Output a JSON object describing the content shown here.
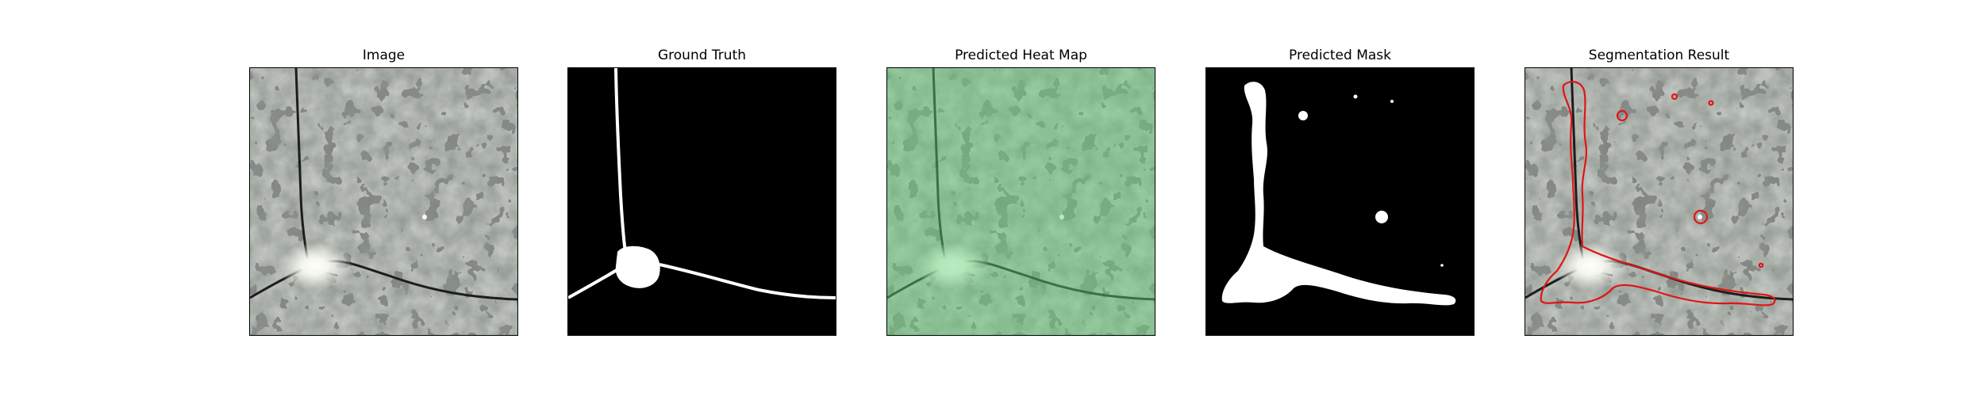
{
  "panels": [
    {
      "id": "image",
      "title": "Image"
    },
    {
      "id": "ground-truth",
      "title": "Ground Truth"
    },
    {
      "id": "heatmap",
      "title": "Predicted Heat Map"
    },
    {
      "id": "mask",
      "title": "Predicted Mask"
    },
    {
      "id": "segmentation",
      "title": "Segmentation Result"
    }
  ],
  "colors": {
    "texture_base": "#9aa09a",
    "texture_dark": "#3b3f3c",
    "heat_overlay": "#64d27a",
    "mask_fg": "#ffffff",
    "mask_bg": "#000000",
    "contour": "#e01515"
  }
}
